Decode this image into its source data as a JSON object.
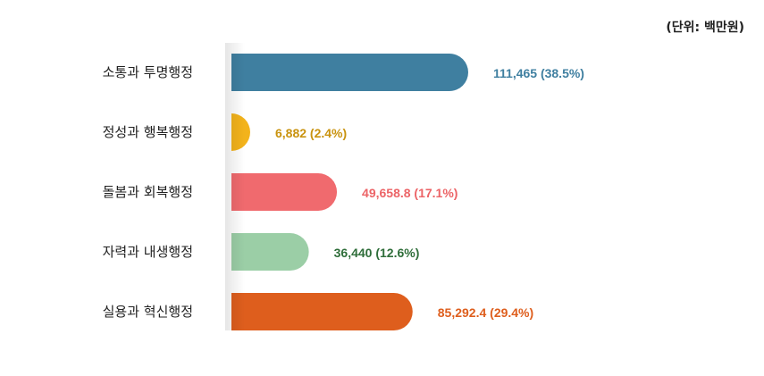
{
  "chart_data": {
    "type": "bar",
    "orientation": "horizontal",
    "unit_label": "(단위: 백만원)",
    "categories": [
      "소통과 투명행정",
      "정성과 행복행정",
      "돌봄과 회복행정",
      "자력과 내생행정",
      "실용과 혁신행정"
    ],
    "values": [
      111465,
      6882,
      49658.8,
      36440,
      85292.4
    ],
    "value_labels": [
      "111,465 (38.5%)",
      "6,882 (2.4%)",
      "49,658.8 (17.1%)",
      "36,440 (12.6%)",
      "85,292.4 (29.4%)"
    ],
    "percent": [
      38.5,
      2.4,
      17.1,
      12.6,
      29.4
    ],
    "bar_colors": [
      "#3f7fa0",
      "#f3b31b",
      "#f06a6e",
      "#9bcea6",
      "#de5e1d"
    ],
    "label_colors": [
      "#3f7fa0",
      "#c9930f",
      "#ec6467",
      "#2f6e3a",
      "#de5e1d"
    ],
    "xlim": [
      0,
      111465
    ],
    "grid": false,
    "legend": "none"
  }
}
